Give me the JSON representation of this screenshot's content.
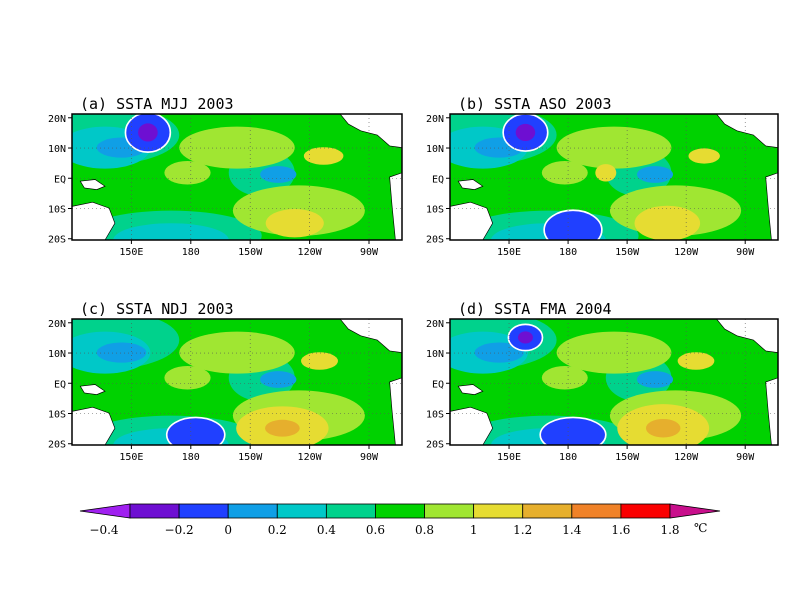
{
  "panels": [
    {
      "title": "(a) SSTA MJJ 2003",
      "warm": [
        [
          290,
          220,
          22,
          13,
          0.95
        ],
        [
          325,
          140,
          15,
          8,
          1.1
        ]
      ],
      "cold": [
        [
          162,
          130,
          17,
          18,
          "a"
        ]
      ]
    },
    {
      "title": "(b) SSTA ASO 2003",
      "warm": [
        [
          285,
          220,
          25,
          16,
          1.15
        ],
        [
          330,
          140,
          12,
          7,
          1.05
        ],
        [
          210,
          160,
          8,
          8,
          1.05
        ]
      ],
      "cold": [
        [
          162,
          128,
          17,
          17,
          "a"
        ],
        [
          215,
          225,
          22,
          18,
          "b"
        ]
      ]
    },
    {
      "title": "(c) SSTA NDJ 2003",
      "warm": [
        [
          275,
          220,
          35,
          20,
          1.2
        ],
        [
          320,
          140,
          14,
          8,
          0.95
        ]
      ],
      "cold": [
        [
          205,
          225,
          22,
          16,
          "b"
        ]
      ]
    },
    {
      "title": "(d) SSTA FMA 2004",
      "warm": [
        [
          280,
          220,
          35,
          22,
          1.2
        ],
        [
          320,
          140,
          14,
          8,
          0.95
        ]
      ],
      "cold": [
        [
          162,
          128,
          13,
          12,
          "a"
        ],
        [
          210,
          228,
          25,
          16,
          "b"
        ]
      ]
    }
  ],
  "lat_labels": [
    "20N",
    "10N",
    "EQ",
    "10S",
    "20S"
  ],
  "lon_labels_top": [
    "150E",
    "180",
    "150W",
    "120W",
    "90W"
  ],
  "lon_labels_bottom": [
    "150E",
    "180",
    "150W",
    "120W",
    "90W"
  ],
  "colorbar": {
    "labels": [
      "−0.4",
      "−0.2",
      "0",
      "0.2",
      "0.4",
      "0.6",
      "0.8",
      "1",
      "1.2",
      "1.4",
      "1.6",
      "1.8"
    ],
    "unit": "℃",
    "colors": [
      "#a020f0",
      "#6e0fd2",
      "#2040ff",
      "#109fe6",
      "#00c8c8",
      "#00d28c",
      "#00d200",
      "#a0e632",
      "#e6dc32",
      "#e6af2d",
      "#f08228",
      "#fa0000",
      "#c80f8c"
    ]
  }
}
